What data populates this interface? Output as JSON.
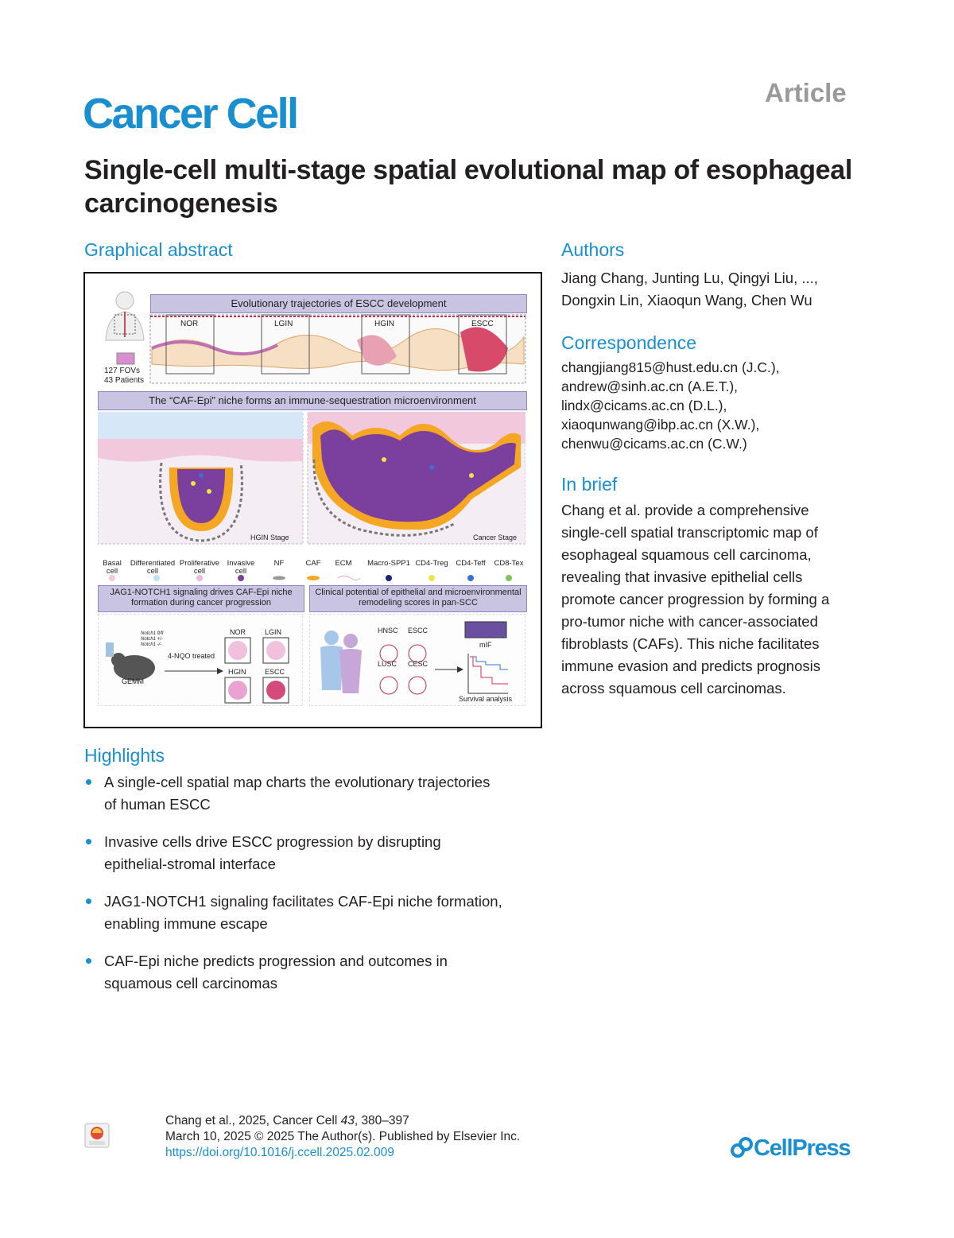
{
  "header": {
    "article_label": "Article",
    "journal": "Cancer Cell",
    "title": "Single-cell multi-stage spatial evolutional map of esophageal carcinogenesis"
  },
  "graphical_abstract": {
    "heading": "Graphical abstract",
    "panel1_title": "Evolutionary trajectories of ESCC development",
    "stages": [
      "NOR",
      "LGIN",
      "HGIN",
      "ESCC"
    ],
    "fov_text": "127 FOVs",
    "patients_text": "43 Patients",
    "panel2_title": "The “CAF-Epi” niche forms an immune-sequestration microenvironment",
    "hgin_stage": "HGIN Stage",
    "cancer_stage": "Cancer Stage",
    "legend": [
      "Basal cell",
      "Differentiated cell",
      "Proliferative cell",
      "Invasive cell",
      "NF",
      "CAF",
      "ECM",
      "Macro-SPP1",
      "CD4-Treg",
      "CD4-Teff",
      "CD8-Tex"
    ],
    "panel3_title_line1": "JAG1-NOTCH1 signaling drives CAF-Epi niche",
    "panel3_title_line2": "formation during cancer progression",
    "panel4_title_line1": "Clinical potential of epithelial and microenvironmental",
    "panel4_title_line2": "remodeling scores in pan-SCC",
    "notch_labels": [
      "Notch1 fl/fl",
      "Notch1 +/-",
      "Notch1 -/-"
    ],
    "treatment": "4-NQO treated",
    "gemm": "GEMM",
    "mouse_stages": [
      "NOR",
      "LGIN",
      "HGIN",
      "ESCC"
    ],
    "scc_types": [
      "HNSC",
      "ESCC",
      "LUSC",
      "CESC"
    ],
    "mif": "mIF",
    "survival": "Survival analysis"
  },
  "authors": {
    "heading": "Authors",
    "line1": "Jiang Chang, Junting Lu, Qingyi Liu, ...,",
    "line2": "Dongxin Lin, Xiaoqun Wang, Chen Wu"
  },
  "correspondence": {
    "heading": "Correspondence",
    "lines": [
      "changjiang815@hust.edu.cn (J.C.),",
      "andrew@sinh.ac.cn (A.E.T.),",
      "lindx@cicams.ac.cn (D.L.),",
      "xiaoqunwang@ibp.ac.cn (X.W.),",
      "chenwu@cicams.ac.cn (C.W.)"
    ]
  },
  "in_brief": {
    "heading": "In brief",
    "lines": [
      "Chang et al. provide a comprehensive",
      "single-cell spatial transcriptomic map of",
      "esophageal squamous cell carcinoma,",
      "revealing that invasive epithelial cells",
      "promote cancer progression by forming a",
      "pro-tumor niche with cancer-associated",
      "fibroblasts (CAFs). This niche facilitates",
      "immune evasion and predicts prognosis",
      "across squamous cell carcinomas."
    ]
  },
  "highlights": {
    "heading": "Highlights",
    "items": [
      {
        "l1": "A single-cell spatial map charts the evolutionary trajectories",
        "l2": "of human ESCC"
      },
      {
        "l1": "Invasive cells drive ESCC progression by disrupting",
        "l2": "epithelial-stromal interface"
      },
      {
        "l1": "JAG1-NOTCH1 signaling facilitates CAF-Epi niche formation,",
        "l2": "enabling immune escape"
      },
      {
        "l1": "CAF-Epi niche predicts progression and outcomes in",
        "l2": "squamous cell carcinomas"
      }
    ]
  },
  "footer": {
    "line1_pre": "Chang et al., 2025, Cancer Cell ",
    "line1_vol": "43",
    "line1_post": ", 380–397",
    "line2": "March 10, 2025 © 2025 The Author(s). Published by Elsevier Inc.",
    "doi": "https://doi.org/10.1016/j.ccell.2025.02.009",
    "check_badge": "Check for updates",
    "publisher": "CellPress"
  },
  "colors": {
    "accent": "#1a8fcf",
    "panel_title_bg": "#c9c4e2",
    "epithelium_pink": "#f2c9dc",
    "tumor_purple": "#7b3f9e",
    "caf_orange": "#f5a623"
  }
}
